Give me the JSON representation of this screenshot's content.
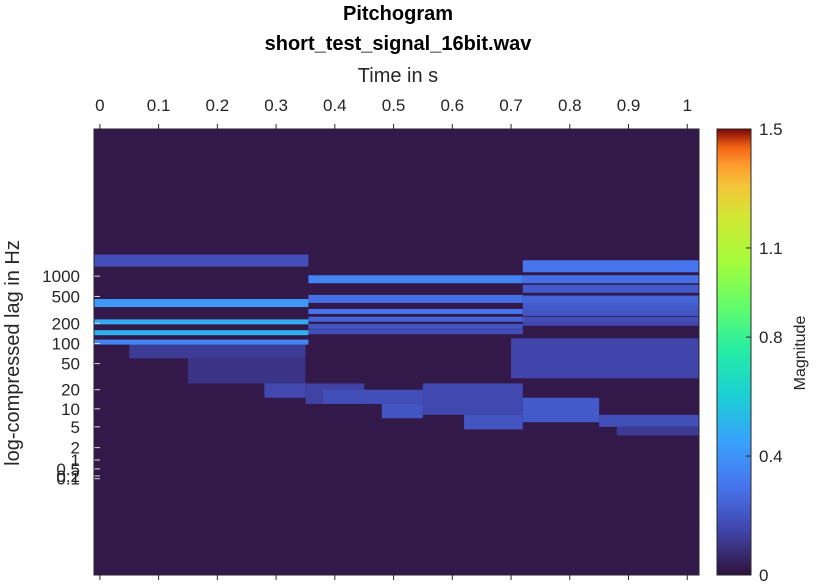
{
  "chart_data": {
    "type": "heatmap",
    "title": "Pitchogram",
    "subtitle": "short_test_signal_16bit.wav",
    "xlabel": "Time in s",
    "ylabel": "log-compressed lag in Hz",
    "xlim": [
      -0.01,
      1.02
    ],
    "x_ticks": [
      0,
      0.1,
      0.2,
      0.3,
      0.4,
      0.5,
      0.6,
      0.7,
      0.8,
      0.9,
      1
    ],
    "x_tick_labels": [
      "0",
      "0.1",
      "0.2",
      "0.3",
      "0.4",
      "0.5",
      "0.6",
      "0.7",
      "0.8",
      "0.9",
      "1"
    ],
    "y_scale": "log-compressed",
    "y_ticks": [
      0.1,
      0.2,
      0.5,
      1,
      2,
      5,
      10,
      20,
      50,
      100,
      200,
      500,
      1000
    ],
    "y_tick_labels": [
      "0.1",
      "0.2",
      "0.5",
      "1",
      "2",
      "5",
      "10",
      "20",
      "50",
      "100",
      "200",
      "500",
      "1000"
    ],
    "colorbar": {
      "label": "Magnitude",
      "range": [
        0,
        1.5
      ],
      "ticks": [
        0,
        0.4,
        0.8,
        1.1,
        1.5
      ],
      "tick_labels": [
        "0",
        "0.4",
        "0.8",
        "1.1",
        "1.5"
      ],
      "colormap": "turbo"
    },
    "background_value": 0.02,
    "notes_segments": [
      {
        "t": [
          -0.01,
          0.355
        ],
        "lines": [
          {
            "f": 1700,
            "v": 0.18
          },
          {
            "f": 400,
            "v": 0.42
          },
          {
            "f": 210,
            "v": 0.48
          },
          {
            "f": 145,
            "v": 0.5
          },
          {
            "f": 105,
            "v": 0.35
          }
        ]
      },
      {
        "t": [
          0.355,
          0.72
        ],
        "lines": [
          {
            "f": 900,
            "v": 0.35
          },
          {
            "f": 460,
            "v": 0.28
          },
          {
            "f": 300,
            "v": 0.3
          },
          {
            "f": 230,
            "v": 0.25
          },
          {
            "f": 180,
            "v": 0.2
          },
          {
            "f": 150,
            "v": 0.18
          }
        ]
      },
      {
        "t": [
          0.72,
          1.02
        ],
        "lines": [
          {
            "f": 1400,
            "v": 0.3
          },
          {
            "f": 900,
            "v": 0.28
          },
          {
            "f": 650,
            "v": 0.22
          },
          {
            "f": 450,
            "v": 0.25
          },
          {
            "f": 350,
            "v": 0.22
          },
          {
            "f": 280,
            "v": 0.2
          },
          {
            "f": 230,
            "v": 0.18
          },
          {
            "f": 200,
            "v": 0.16
          }
        ]
      }
    ],
    "low_lag_blocks": [
      {
        "t": [
          0.05,
          0.35
        ],
        "f": [
          60,
          100
        ],
        "v": 0.12
      },
      {
        "t": [
          0.15,
          0.35
        ],
        "f": [
          25,
          60
        ],
        "v": 0.1
      },
      {
        "t": [
          0.28,
          0.35
        ],
        "f": [
          15,
          25
        ],
        "v": 0.16
      },
      {
        "t": [
          0.35,
          0.45
        ],
        "f": [
          12,
          25
        ],
        "v": 0.14
      },
      {
        "t": [
          0.38,
          0.55
        ],
        "f": [
          12,
          20
        ],
        "v": 0.18
      },
      {
        "t": [
          0.48,
          0.55
        ],
        "f": [
          7,
          12
        ],
        "v": 0.2
      },
      {
        "t": [
          0.55,
          0.72
        ],
        "f": [
          8,
          25
        ],
        "v": 0.16
      },
      {
        "t": [
          0.62,
          0.72
        ],
        "f": [
          4.5,
          8
        ],
        "v": 0.2
      },
      {
        "t": [
          0.72,
          0.85
        ],
        "f": [
          6,
          15
        ],
        "v": 0.22
      },
      {
        "t": [
          0.85,
          1.02
        ],
        "f": [
          5,
          8
        ],
        "v": 0.18
      },
      {
        "t": [
          0.88,
          1.02
        ],
        "f": [
          3.5,
          5
        ],
        "v": 0.12
      },
      {
        "t": [
          0.7,
          1.02
        ],
        "f": [
          30,
          120
        ],
        "v": 0.15
      }
    ]
  }
}
